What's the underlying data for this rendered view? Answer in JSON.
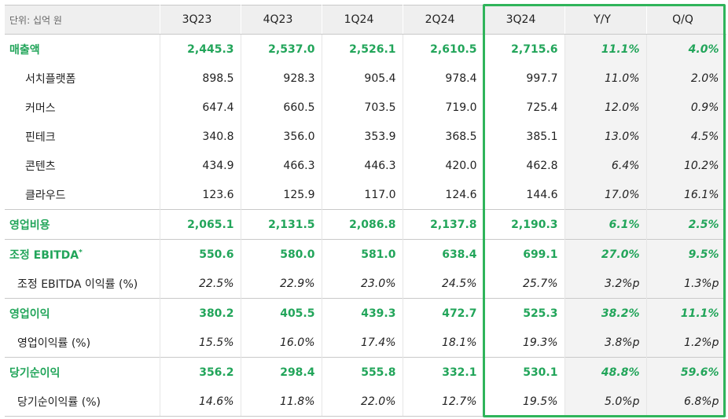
{
  "table": {
    "unit_label": "단위: 십억 원",
    "headers": [
      "3Q23",
      "4Q23",
      "1Q24",
      "2Q24",
      "3Q24",
      "Y/Y",
      "Q/Q"
    ],
    "rows": [
      {
        "label": "매출액",
        "type": "major",
        "values": [
          "2,445.3",
          "2,537.0",
          "2,526.1",
          "2,610.5",
          "2,715.6",
          "11.1%",
          "4.0%"
        ]
      },
      {
        "label": "서치플랫폼",
        "type": "sub",
        "values": [
          "898.5",
          "928.3",
          "905.4",
          "978.4",
          "997.7",
          "11.0%",
          "2.0%"
        ]
      },
      {
        "label": "커머스",
        "type": "sub",
        "values": [
          "647.4",
          "660.5",
          "703.5",
          "719.0",
          "725.4",
          "12.0%",
          "0.9%"
        ]
      },
      {
        "label": "핀테크",
        "type": "sub",
        "values": [
          "340.8",
          "356.0",
          "353.9",
          "368.5",
          "385.1",
          "13.0%",
          "4.5%"
        ]
      },
      {
        "label": "콘텐츠",
        "type": "sub",
        "values": [
          "434.9",
          "466.3",
          "446.3",
          "420.0",
          "462.8",
          "6.4%",
          "10.2%"
        ]
      },
      {
        "label": "클라우드",
        "type": "sub",
        "values": [
          "123.6",
          "125.9",
          "117.0",
          "124.6",
          "144.6",
          "17.0%",
          "16.1%"
        ]
      },
      {
        "label": "영업비용",
        "type": "major",
        "values": [
          "2,065.1",
          "2,131.5",
          "2,086.8",
          "2,137.8",
          "2,190.3",
          "6.1%",
          "2.5%"
        ]
      },
      {
        "label": "조정 EBITDA",
        "sup": "*",
        "type": "major",
        "values": [
          "550.6",
          "580.0",
          "581.0",
          "638.4",
          "699.1",
          "27.0%",
          "9.5%"
        ]
      },
      {
        "label": "조정 EBITDA 이익률 (%)",
        "type": "ratio",
        "values": [
          "22.5%",
          "22.9%",
          "23.0%",
          "24.5%",
          "25.7%",
          "3.2%p",
          "1.3%p"
        ]
      },
      {
        "label": "영업이익",
        "type": "major",
        "values": [
          "380.2",
          "405.5",
          "439.3",
          "472.7",
          "525.3",
          "38.2%",
          "11.1%"
        ]
      },
      {
        "label": "영업이익률 (%)",
        "type": "ratio",
        "values": [
          "15.5%",
          "16.0%",
          "17.4%",
          "18.1%",
          "19.3%",
          "3.8%p",
          "1.2%p"
        ]
      },
      {
        "label": "당기순이익",
        "type": "major",
        "values": [
          "356.2",
          "298.4",
          "555.8",
          "332.1",
          "530.1",
          "48.8%",
          "59.6%"
        ]
      },
      {
        "label": "당기순이익률 (%)",
        "type": "ratio",
        "values": [
          "14.6%",
          "11.8%",
          "22.0%",
          "12.7%",
          "19.5%",
          "5.0%p",
          "6.8%p"
        ]
      }
    ]
  },
  "colors": {
    "accent_green": "#22a55a",
    "highlight_border": "#2fb45a",
    "header_bg": "#efefef"
  }
}
